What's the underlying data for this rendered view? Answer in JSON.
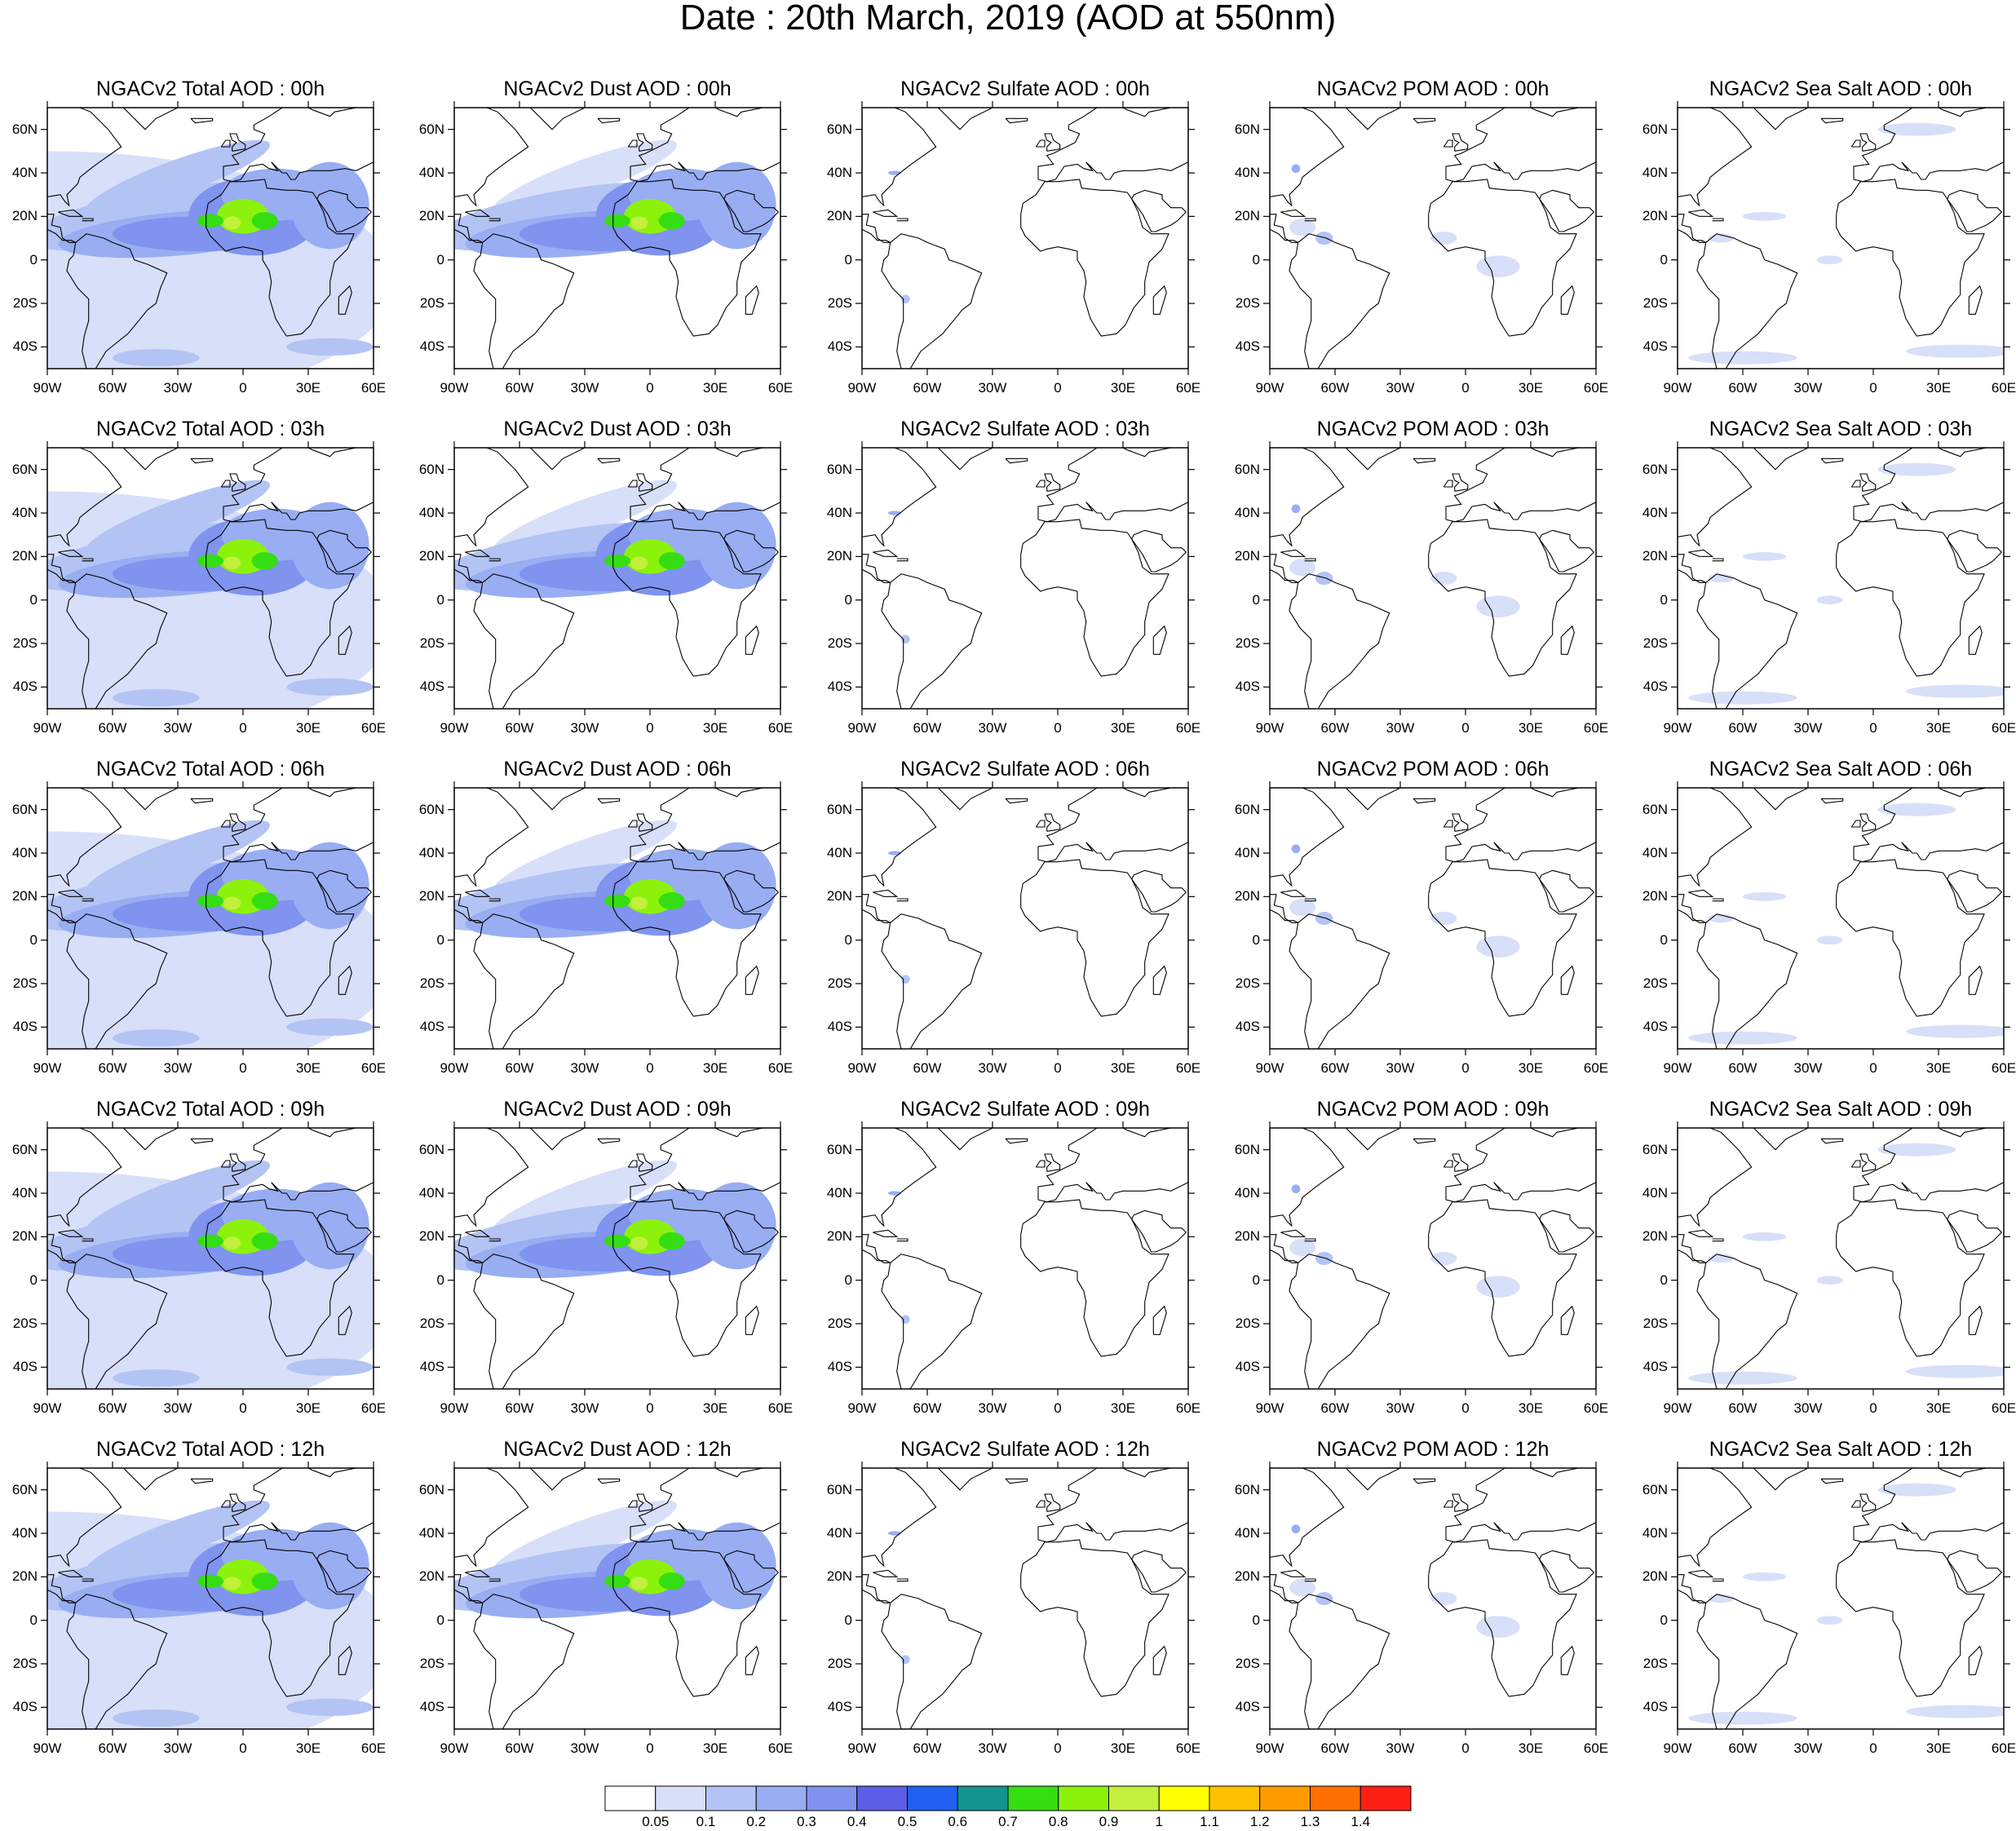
{
  "title": "Date : 20th March, 2019 (AOD at 550nm)",
  "rows": [
    {
      "hour": "00h",
      "titles": [
        "NGACv2 Total AOD : 00h",
        "NGACv2 Dust AOD : 00h",
        "NGACv2 Sulfate AOD : 00h",
        "NGACv2 POM AOD : 00h",
        "NGACv2 Sea Salt AOD : 00h"
      ]
    },
    {
      "hour": "03h",
      "titles": [
        "NGACv2 Total AOD : 03h",
        "NGACv2 Dust AOD : 03h",
        "NGACv2 Sulfate AOD : 03h",
        "NGACv2 POM AOD : 03h",
        "NGACv2 Sea Salt AOD : 03h"
      ]
    },
    {
      "hour": "06h",
      "titles": [
        "NGACv2 Total AOD : 06h",
        "NGACv2 Dust AOD : 06h",
        "NGACv2 Sulfate AOD : 06h",
        "NGACv2 POM AOD : 06h",
        "NGACv2 Sea Salt AOD : 06h"
      ]
    },
    {
      "hour": "09h",
      "titles": [
        "NGACv2 Total AOD : 09h",
        "NGACv2 Dust AOD : 09h",
        "NGACv2 Sulfate AOD : 09h",
        "NGACv2 POM AOD : 09h",
        "NGACv2 Sea Salt  AOD : 09h"
      ]
    },
    {
      "hour": "12h",
      "titles": [
        "NGACv2 Total AOD  : 12h",
        "NGACv2 Dust AOD : 12h",
        "NGACv2 Sulfate AOD : 12h",
        "NGACv2 POM  AOD : 12h",
        "NGACv2 Sea Salt  AOD : 12h"
      ]
    }
  ],
  "species": [
    "Total",
    "Dust",
    "Sulfate",
    "POM",
    "Sea Salt"
  ],
  "map_extent": {
    "lon": [
      -90,
      60
    ],
    "lat": [
      -50,
      70
    ]
  },
  "lon_ticks": [
    {
      "value": -90,
      "label": "90W"
    },
    {
      "value": -60,
      "label": "60W"
    },
    {
      "value": -30,
      "label": "30W"
    },
    {
      "value": 0,
      "label": "0"
    },
    {
      "value": 30,
      "label": "30E"
    },
    {
      "value": 60,
      "label": "60E"
    }
  ],
  "lat_ticks": [
    {
      "value": 60,
      "label": "60N"
    },
    {
      "value": 40,
      "label": "40N"
    },
    {
      "value": 20,
      "label": "20N"
    },
    {
      "value": 0,
      "label": "0"
    },
    {
      "value": -20,
      "label": "20S"
    },
    {
      "value": -40,
      "label": "40S"
    }
  ],
  "colorbar": {
    "labels": [
      "0.05",
      "0.1",
      "0.2",
      "0.3",
      "0.4",
      "0.5",
      "0.6",
      "0.7",
      "0.8",
      "0.9",
      "1",
      "1.1",
      "1.2",
      "1.3",
      "1.4"
    ],
    "colors": [
      "#ffffff",
      "#d7dff9",
      "#b3c3f4",
      "#98adf2",
      "#7f93ef",
      "#5c5ee8",
      "#1f60f2",
      "#13948f",
      "#35dd13",
      "#8cf20b",
      "#c2f03d",
      "#ffff00",
      "#ffc100",
      "#ff9a00",
      "#ff7000",
      "#ff1f14"
    ]
  },
  "colors": {
    "land_outline": "#000000",
    "frame": "#000000"
  }
}
